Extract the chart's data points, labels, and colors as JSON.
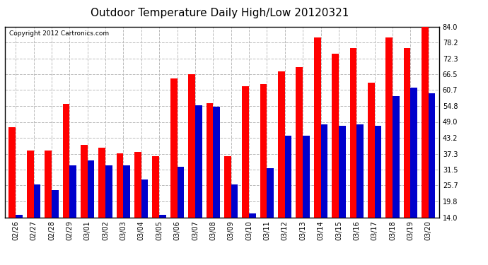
{
  "title": "Outdoor Temperature Daily High/Low 20120321",
  "copyright": "Copyright 2012 Cartronics.com",
  "dates": [
    "02/26",
    "02/27",
    "02/28",
    "02/29",
    "03/01",
    "03/02",
    "03/03",
    "03/04",
    "03/05",
    "03/06",
    "03/07",
    "03/08",
    "03/09",
    "03/10",
    "03/11",
    "03/12",
    "03/13",
    "03/14",
    "03/15",
    "03/16",
    "03/17",
    "03/18",
    "03/19",
    "03/20"
  ],
  "highs": [
    47.0,
    38.5,
    38.5,
    55.5,
    40.5,
    39.5,
    37.5,
    38.0,
    36.5,
    65.0,
    66.5,
    56.0,
    36.5,
    62.0,
    63.0,
    67.5,
    69.0,
    80.0,
    74.0,
    76.0,
    63.5,
    80.0,
    76.0,
    84.0
  ],
  "lows": [
    15.0,
    26.0,
    24.0,
    33.0,
    35.0,
    33.0,
    33.0,
    28.0,
    15.0,
    32.5,
    55.0,
    54.5,
    26.0,
    15.5,
    32.0,
    44.0,
    44.0,
    48.0,
    47.5,
    48.0,
    47.5,
    58.5,
    61.5,
    59.5
  ],
  "high_color": "#ff0000",
  "low_color": "#0000cc",
  "bg_color": "#ffffff",
  "plot_bg_color": "#ffffff",
  "grid_color": "#bbbbbb",
  "title_fontsize": 11,
  "copyright_fontsize": 6.5,
  "tick_fontsize": 7,
  "yticks": [
    14.0,
    19.8,
    25.7,
    31.5,
    37.3,
    43.2,
    49.0,
    54.8,
    60.7,
    66.5,
    72.3,
    78.2,
    84.0
  ],
  "ymin": 14.0,
  "ymax": 84.0,
  "bar_width": 0.38
}
